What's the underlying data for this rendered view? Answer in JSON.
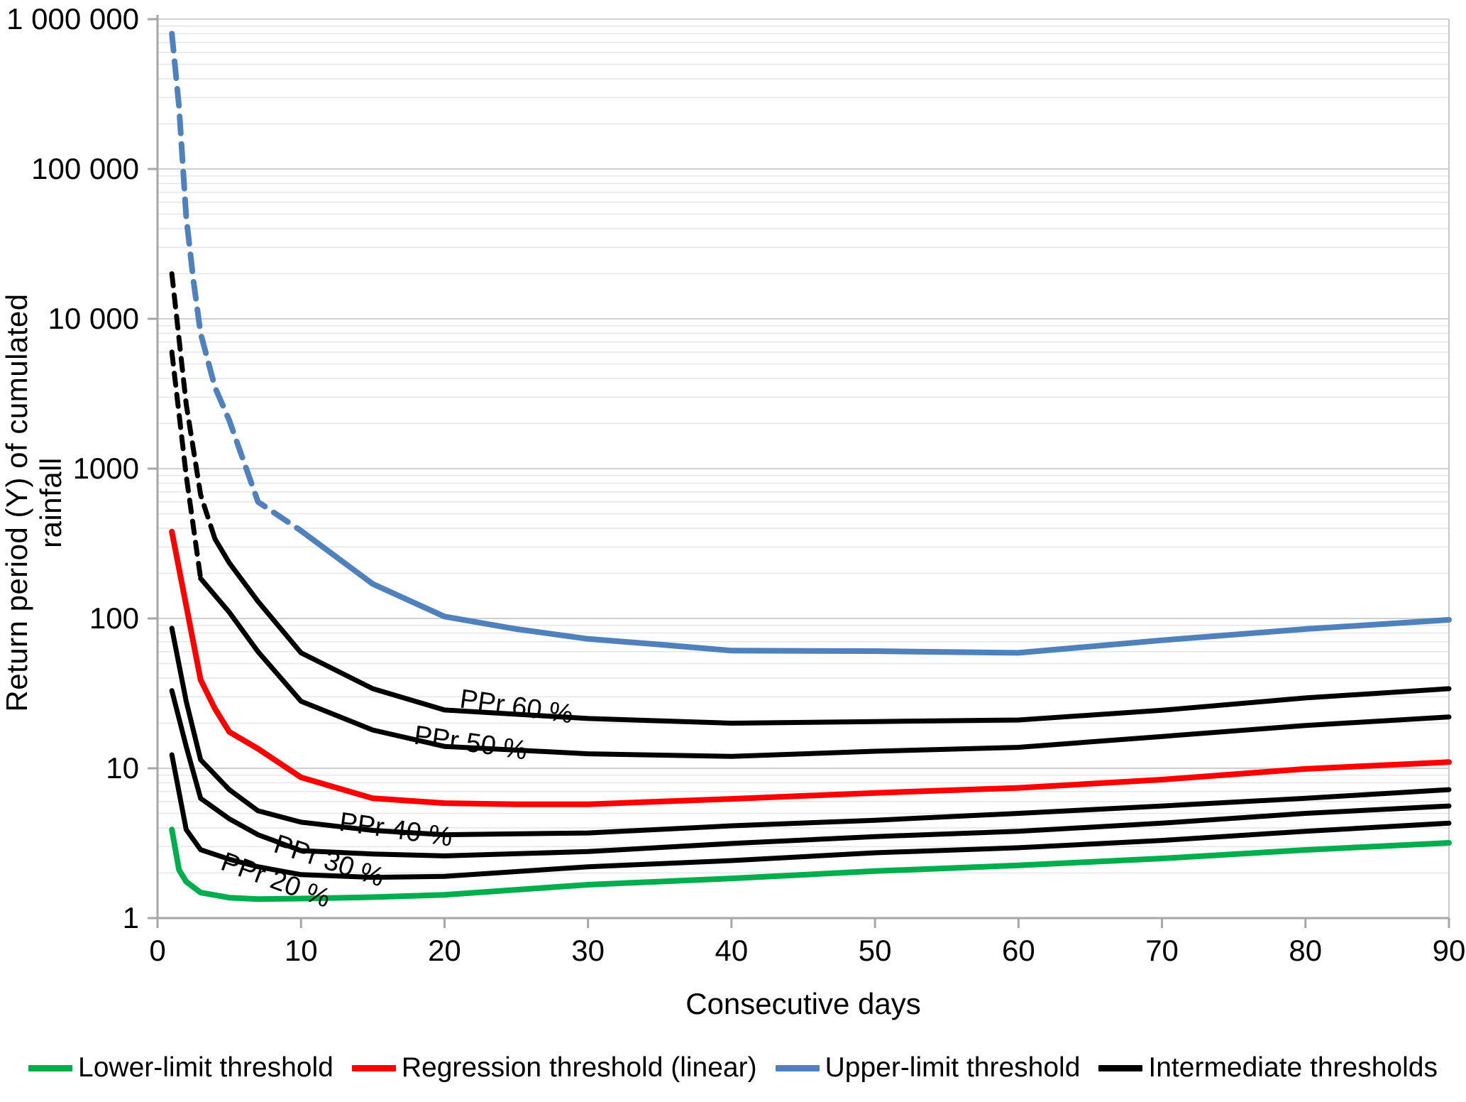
{
  "chart_data": {
    "type": "line",
    "title": "",
    "xlabel": "Consecutive days",
    "ylabel": "Return period (Y) of cumulated rainfall",
    "x_scale": "linear",
    "y_scale": "log",
    "xlim": [
      0,
      90
    ],
    "ylim": [
      1,
      1000000
    ],
    "grid": "horizontal major+minor log gridlines, no vertical gridlines",
    "legend_position": "bottom",
    "x_ticks": [
      0,
      10,
      20,
      30,
      40,
      50,
      60,
      70,
      80,
      90
    ],
    "y_tick_labels": [
      "1",
      "10",
      "100",
      "1000",
      "10 000",
      "100 000",
      "1 000 000"
    ],
    "y_tick_values": [
      1,
      10,
      100,
      1000,
      10000,
      100000,
      1000000
    ],
    "series": [
      {
        "name": "Upper-limit threshold",
        "color": "#4F81BD",
        "style": "dashed-then-solid",
        "dash_until_day": 10,
        "stroke_width": 8,
        "x": [
          1,
          1.5,
          2,
          2.5,
          3,
          4,
          5,
          7,
          10,
          15,
          20,
          25,
          30,
          35,
          40,
          50,
          60,
          70,
          80,
          90
        ],
        "values": [
          800000,
          260000,
          48000,
          18000,
          8000,
          3500,
          2100,
          600,
          385,
          170,
          103,
          85,
          73,
          67,
          61,
          60.5,
          59,
          71.5,
          85,
          98
        ]
      },
      {
        "name": "Intermediate threshold PPr 60 %",
        "color": "#000000",
        "style": "dashed-then-solid",
        "dash_until_day": 4,
        "stroke_width": 7,
        "x": [
          1,
          2,
          3,
          4,
          5,
          7,
          10,
          15,
          20,
          30,
          40,
          50,
          60,
          70,
          80,
          90
        ],
        "values": [
          20000,
          2700,
          670,
          340,
          235,
          130,
          59,
          34,
          24.5,
          21.5,
          20,
          20.5,
          21,
          24.4,
          29.5,
          34
        ]
      },
      {
        "name": "Intermediate threshold PPr 50 %",
        "color": "#000000",
        "style": "dashed-then-solid",
        "dash_until_day": 3,
        "stroke_width": 7,
        "x": [
          1,
          2,
          3,
          5,
          7,
          10,
          15,
          20,
          30,
          40,
          50,
          60,
          70,
          80,
          90
        ],
        "values": [
          6000,
          900,
          185,
          110,
          60,
          28,
          18,
          14,
          12.5,
          12,
          13,
          13.8,
          16.3,
          19.3,
          22
        ]
      },
      {
        "name": "Regression threshold (linear)",
        "color": "#FF0000",
        "style": "solid",
        "stroke_width": 8,
        "x": [
          1,
          2,
          3,
          4,
          5,
          7,
          10,
          15,
          20,
          25,
          30,
          40,
          50,
          60,
          70,
          80,
          90
        ],
        "values": [
          380,
          122,
          39,
          25,
          17.5,
          13.5,
          8.7,
          6.3,
          5.85,
          5.75,
          5.75,
          6.25,
          6.85,
          7.4,
          8.4,
          9.9,
          11
        ]
      },
      {
        "name": "Intermediate threshold PPr 40 %",
        "color": "#000000",
        "style": "solid",
        "stroke_width": 7,
        "x": [
          1,
          2,
          3,
          5,
          7,
          10,
          15,
          20,
          30,
          40,
          50,
          60,
          70,
          80,
          90
        ],
        "values": [
          86,
          28,
          11.4,
          7.2,
          5.2,
          4.37,
          3.85,
          3.6,
          3.7,
          4.13,
          4.5,
          5.0,
          5.6,
          6.3,
          7.2
        ]
      },
      {
        "name": "Intermediate threshold PPr 30 %",
        "color": "#000000",
        "style": "solid",
        "stroke_width": 7,
        "x": [
          1,
          2,
          3,
          5,
          7,
          10,
          15,
          20,
          30,
          40,
          50,
          60,
          70,
          80,
          90
        ],
        "values": [
          33,
          14,
          6.3,
          4.6,
          3.6,
          2.82,
          2.68,
          2.6,
          2.78,
          3.15,
          3.5,
          3.8,
          4.3,
          5.0,
          5.6
        ]
      },
      {
        "name": "Intermediate threshold PPr 20 %",
        "color": "#000000",
        "style": "solid",
        "stroke_width": 7,
        "x": [
          1,
          2,
          3,
          5,
          7,
          10,
          15,
          20,
          30,
          40,
          50,
          60,
          70,
          80,
          90
        ],
        "values": [
          12.3,
          3.9,
          2.86,
          2.47,
          2.2,
          1.95,
          1.87,
          1.9,
          2.2,
          2.42,
          2.73,
          2.95,
          3.3,
          3.8,
          4.3
        ]
      },
      {
        "name": "Lower-limit threshold",
        "color": "#00AE4D",
        "style": "solid",
        "stroke_width": 8,
        "x": [
          1,
          1.5,
          2,
          3,
          5,
          7,
          10,
          15,
          20,
          30,
          40,
          50,
          60,
          70,
          80,
          90
        ],
        "values": [
          3.9,
          2.1,
          1.75,
          1.48,
          1.37,
          1.34,
          1.35,
          1.38,
          1.43,
          1.67,
          1.84,
          2.06,
          2.25,
          2.5,
          2.85,
          3.18
        ]
      }
    ],
    "curve_labels": [
      {
        "text": "PPr 60 %",
        "day": 21.0,
        "value": 25.5,
        "rotation": 8
      },
      {
        "text": "PPr 50 %",
        "day": 17.8,
        "value": 14.6,
        "rotation": 8
      },
      {
        "text": "PPr 40 %",
        "day": 12.6,
        "value": 3.85,
        "rotation": 8
      },
      {
        "text": "PPr 30 %",
        "day": 8.0,
        "value": 2.78,
        "rotation": 18
      },
      {
        "text": "PPr 20 %",
        "day": 4.3,
        "value": 2.13,
        "rotation": 20
      }
    ]
  },
  "legend": {
    "items": [
      {
        "label": "Lower-limit threshold",
        "color": "#00AE4D"
      },
      {
        "label": "Regression threshold (linear)",
        "color": "#FF0000"
      },
      {
        "label": "Upper-limit threshold",
        "color": "#4F81BD"
      },
      {
        "label": "Intermediate thresholds",
        "color": "#000000"
      }
    ]
  },
  "axes": {
    "x_title": "Consecutive days",
    "y_title": "Return period (Y) of cumulated rainfall"
  },
  "colors": {
    "background": "#FFFFFF",
    "axis_line": "#A6A6A6",
    "major_grid": "#C9C9C9",
    "minor_grid": "#E7E7E7",
    "text": "#000000"
  }
}
